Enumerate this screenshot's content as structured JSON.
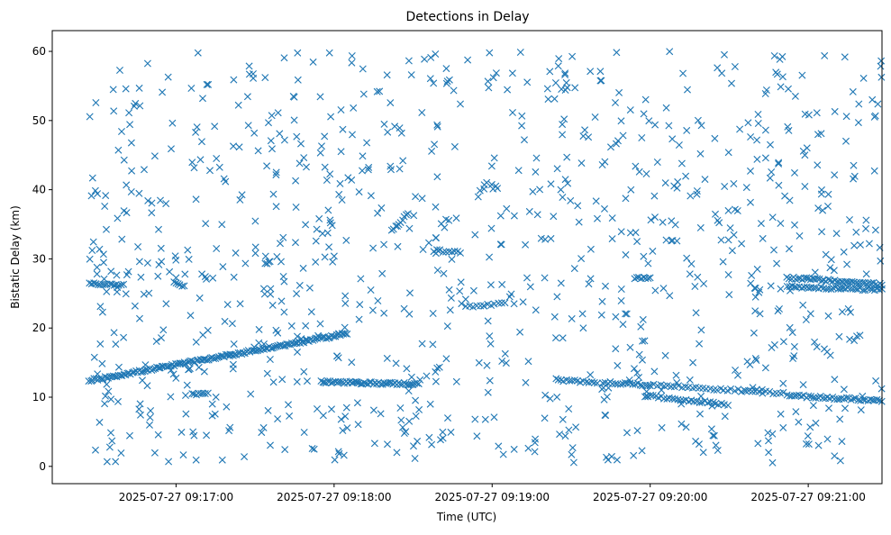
{
  "chart_data": {
    "type": "scatter",
    "title": "Detections in Delay",
    "xlabel": "Time (UTC)",
    "ylabel": "Bistatic Delay (km)",
    "marker": "x",
    "color": "#1f77b4",
    "grid": false,
    "legend": "none",
    "xlim": [
      "2025-07-27 09:16:13",
      "2025-07-27 09:21:28"
    ],
    "ylim": [
      -2.5,
      63
    ],
    "x_ticks": [
      "2025-07-27 09:17:00",
      "2025-07-27 09:18:00",
      "2025-07-27 09:19:00",
      "2025-07-27 09:20:00",
      "2025-07-27 09:21:00"
    ],
    "y_ticks": [
      0,
      10,
      20,
      30,
      40,
      50,
      60
    ],
    "tracks": [
      {
        "start": [
          "2025-07-27 09:16:27",
          12.4
        ],
        "end": [
          "2025-07-27 09:18:05",
          19.2
        ],
        "count": 150
      },
      {
        "start": [
          "2025-07-27 09:16:27",
          26.5
        ],
        "end": [
          "2025-07-27 09:16:40",
          26.2
        ],
        "count": 16
      },
      {
        "start": [
          "2025-07-27 09:17:00",
          26.4
        ],
        "end": [
          "2025-07-27 09:17:03",
          26.1
        ],
        "count": 5
      },
      {
        "start": [
          "2025-07-27 09:17:55",
          12.2
        ],
        "end": [
          "2025-07-27 09:18:32",
          11.9
        ],
        "count": 55
      },
      {
        "start": [
          "2025-07-27 09:18:38",
          31.2
        ],
        "end": [
          "2025-07-27 09:18:48",
          31.0
        ],
        "count": 10
      },
      {
        "start": [
          "2025-07-27 09:18:50",
          23.0
        ],
        "end": [
          "2025-07-27 09:19:05",
          23.6
        ],
        "count": 12
      },
      {
        "start": [
          "2025-07-27 09:19:25",
          12.4
        ],
        "end": [
          "2025-07-27 09:19:40",
          12.2
        ],
        "count": 15
      },
      {
        "start": [
          "2025-07-27 09:19:42",
          12.1
        ],
        "end": [
          "2025-07-27 09:20:00",
          11.8
        ],
        "count": 20
      },
      {
        "start": [
          "2025-07-27 09:19:58",
          10.2
        ],
        "end": [
          "2025-07-27 09:20:28",
          9.0
        ],
        "count": 30
      },
      {
        "start": [
          "2025-07-27 09:20:00",
          11.8
        ],
        "end": [
          "2025-07-27 09:20:52",
          10.5
        ],
        "count": 40
      },
      {
        "start": [
          "2025-07-27 09:20:53",
          10.2
        ],
        "end": [
          "2025-07-27 09:21:28",
          9.5
        ],
        "count": 40
      },
      {
        "start": [
          "2025-07-27 09:20:52",
          27.3
        ],
        "end": [
          "2025-07-27 09:21:28",
          26.3
        ],
        "count": 45
      },
      {
        "start": [
          "2025-07-27 09:20:52",
          26.0
        ],
        "end": [
          "2025-07-27 09:21:28",
          25.5
        ],
        "count": 40
      },
      {
        "start": [
          "2025-07-27 09:19:54",
          27.2
        ],
        "end": [
          "2025-07-27 09:20:00",
          27.2
        ],
        "count": 8
      },
      {
        "start": [
          "2025-07-27 09:18:22",
          34.0
        ],
        "end": [
          "2025-07-27 09:18:28",
          36.5
        ],
        "count": 10
      },
      {
        "start": [
          "2025-07-27 09:17:06",
          10.5
        ],
        "end": [
          "2025-07-27 09:17:12",
          10.5
        ],
        "count": 8
      }
    ],
    "scattered_points": {
      "count": 980,
      "seed": 987654,
      "x_range": [
        "2025-07-27 09:16:27",
        "2025-07-27 09:21:28"
      ],
      "y_range": [
        0.5,
        60
      ]
    }
  }
}
